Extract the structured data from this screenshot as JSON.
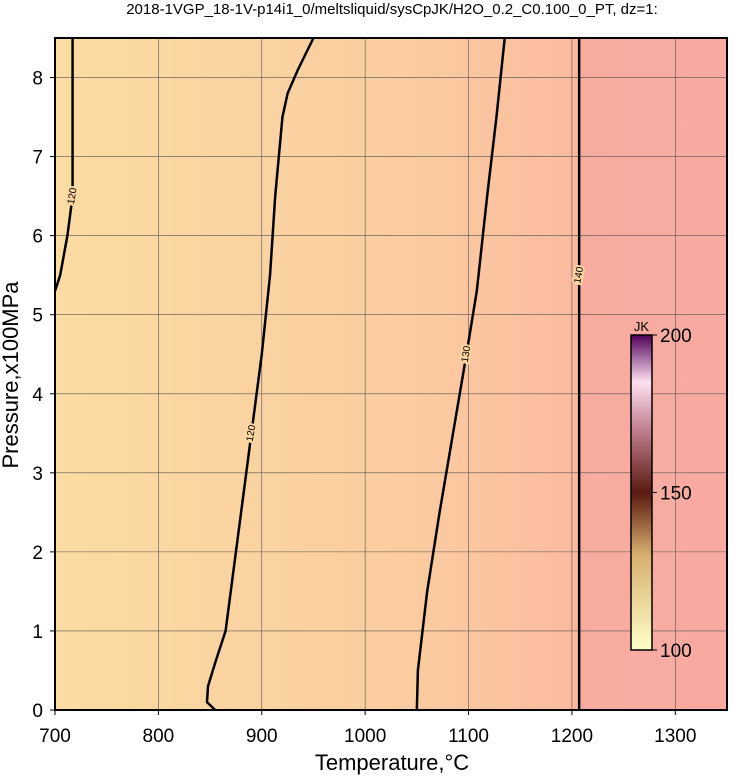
{
  "chart_data": {
    "type": "contour",
    "title": "2018-1VGP_18-1V-p14i1_0/meltsliquid/sysCpJK/H2O_0.2_C0.100_0_PT, dz=1:",
    "xlabel": "Temperature,°C",
    "ylabel": "Pressure,x100MPa",
    "xlim": [
      700,
      1350
    ],
    "ylim": [
      0,
      8.5
    ],
    "xticks": [
      700,
      800,
      900,
      1000,
      1100,
      1200,
      1300
    ],
    "yticks": [
      0,
      1,
      2,
      3,
      4,
      5,
      6,
      7,
      8
    ],
    "grid": true,
    "contours": [
      {
        "level": 120,
        "x": [
          855,
          847,
          848,
          855,
          865,
          877,
          882,
          890,
          900,
          908,
          913,
          920,
          925,
          935,
          950
        ],
        "y": [
          0,
          0.1,
          0.3,
          0.6,
          1,
          2.2,
          2.7,
          3.5,
          4.5,
          5.5,
          6.5,
          7.5,
          7.8,
          8.1,
          8.5
        ]
      },
      {
        "level": 130,
        "x": [
          1050,
          1051,
          1060,
          1072,
          1085,
          1098,
          1108,
          1118,
          1127,
          1135
        ],
        "y": [
          0,
          0.5,
          1.5,
          2.5,
          3.5,
          4.5,
          5.3,
          6.5,
          7.5,
          8.5
        ]
      },
      {
        "level": 140,
        "x": [
          1207,
          1207,
          1207
        ],
        "y": [
          0,
          5.5,
          8.5
        ]
      },
      {
        "level": 120,
        "x": [
          700,
          705,
          712,
          717,
          717,
          717
        ],
        "y": [
          5.3,
          5.5,
          6,
          6.5,
          7.5,
          8.5
        ]
      }
    ],
    "colorbar": {
      "label": "JK",
      "lim": [
        100,
        200
      ],
      "ticks": [
        100,
        150,
        200
      ]
    }
  }
}
